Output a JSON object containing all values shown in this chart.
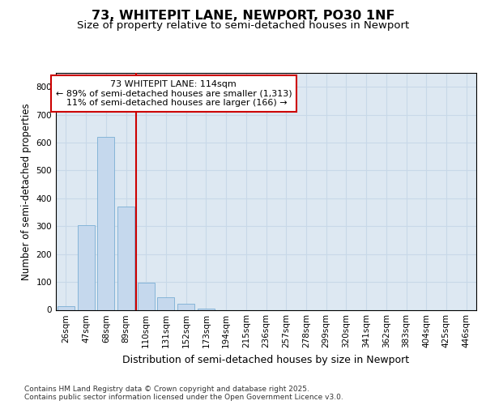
{
  "title": "73, WHITEPIT LANE, NEWPORT, PO30 1NF",
  "subtitle": "Size of property relative to semi-detached houses in Newport",
  "xlabel": "Distribution of semi-detached houses by size in Newport",
  "ylabel": "Number of semi-detached properties",
  "categories": [
    "26sqm",
    "47sqm",
    "68sqm",
    "89sqm",
    "110sqm",
    "131sqm",
    "152sqm",
    "173sqm",
    "194sqm",
    "215sqm",
    "236sqm",
    "257sqm",
    "278sqm",
    "299sqm",
    "320sqm",
    "341sqm",
    "362sqm",
    "383sqm",
    "404sqm",
    "425sqm",
    "446sqm"
  ],
  "values": [
    12,
    303,
    619,
    370,
    97,
    46,
    22,
    5,
    0,
    0,
    0,
    0,
    0,
    0,
    0,
    0,
    0,
    0,
    0,
    0,
    0
  ],
  "bar_color": "#c5d8ed",
  "bar_edge_color": "#7aafd4",
  "grid_color": "#c8d8e8",
  "background_color": "#dde8f2",
  "annotation_line1": "73 WHITEPIT LANE: 114sqm",
  "annotation_line2": "← 89% of semi-detached houses are smaller (1,313)",
  "annotation_line3": "  11% of semi-detached houses are larger (166) →",
  "annotation_box_color": "#ffffff",
  "annotation_box_edge": "#cc0000",
  "vline_color": "#cc0000",
  "vline_x_index": 4,
  "ylim": [
    0,
    850
  ],
  "yticks": [
    0,
    100,
    200,
    300,
    400,
    500,
    600,
    700,
    800
  ],
  "footer": "Contains HM Land Registry data © Crown copyright and database right 2025.\nContains public sector information licensed under the Open Government Licence v3.0.",
  "title_fontsize": 11.5,
  "subtitle_fontsize": 9.5,
  "tick_fontsize": 7.5,
  "ylabel_fontsize": 8.5,
  "xlabel_fontsize": 9,
  "annotation_fontsize": 8,
  "footer_fontsize": 6.5
}
